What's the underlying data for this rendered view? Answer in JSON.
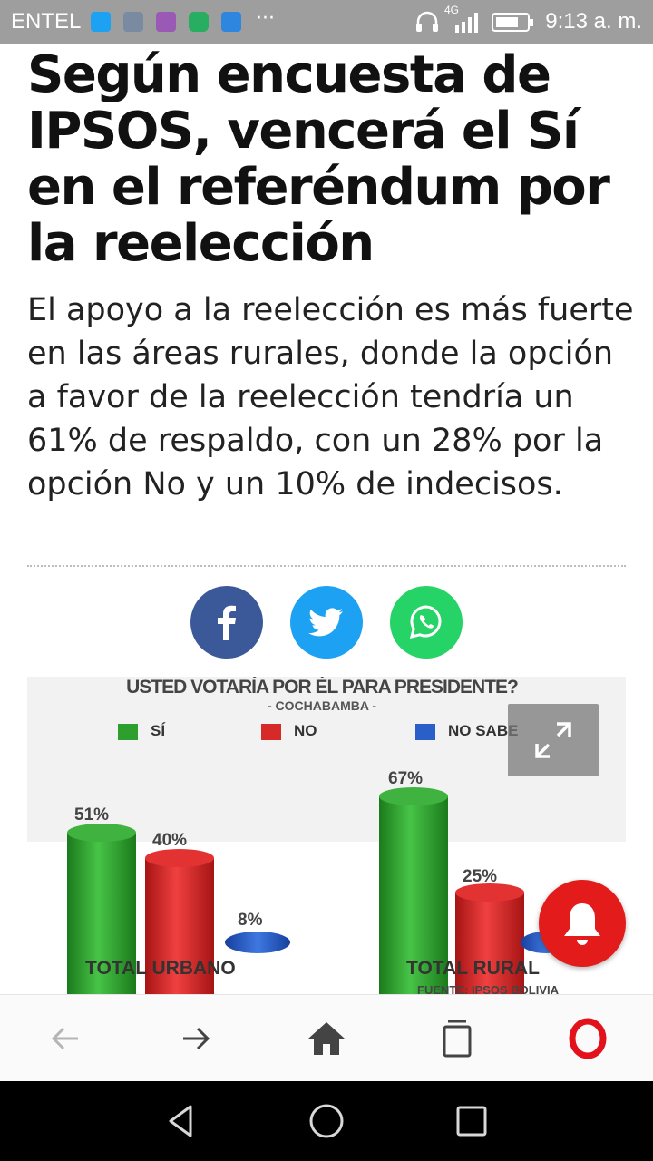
{
  "status_bar": {
    "carrier": "ENTEL",
    "network": "4G",
    "time": "9:13 a. m.",
    "more": "···",
    "notification_icons": [
      "twitter-icon",
      "gallery-icon",
      "keyboard-icon",
      "messages-icon",
      "wifi-icon"
    ]
  },
  "article": {
    "headline": "Según encuesta de IPSOS, vencerá el Sí en el referéndum por la reelección",
    "summary": "El apoyo a la reelección es más fuerte en las áreas rurales, donde la opción a favor de la reelección tendría un 61% de respaldo, con un 28% por la opción No y un 10% de indecisos."
  },
  "share": {
    "icons": [
      "facebook-icon",
      "twitter-icon",
      "whatsapp-icon"
    ],
    "colors": {
      "facebook": "#3b5998",
      "twitter": "#1da1f2",
      "whatsapp": "#25d366"
    }
  },
  "poll_image": {
    "title": "USTED VOTARÍA POR ÉL PARA PRESIDENTE?",
    "subtitle": "- COCHABAMBA -",
    "legend": [
      "SÍ",
      "NO",
      "NO SABE"
    ],
    "colors": {
      "si": "#2e9e2e",
      "no": "#d62a2a",
      "no_sabe": "#2a5ec8"
    },
    "groups": [
      {
        "label": "TOTAL URBANO",
        "si": "51%",
        "no": "40%",
        "no_sabe": "8%"
      },
      {
        "label": "TOTAL RURAL",
        "si": "67%",
        "no": "25%",
        "no_sabe": ""
      }
    ],
    "source": "FUENTE: IPSOS BOLIVIA"
  },
  "toolbar": {
    "buttons": [
      "back-arrow-icon",
      "forward-arrow-icon",
      "home-icon",
      "tabs-icon",
      "opera-icon"
    ]
  },
  "navbar": {
    "buttons": [
      "back-triangle-icon",
      "home-circle-icon",
      "recents-square-icon"
    ]
  }
}
